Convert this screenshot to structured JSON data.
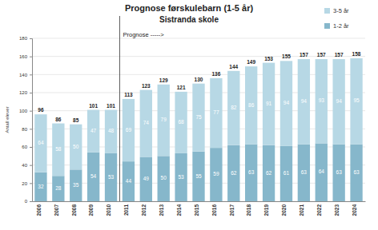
{
  "chart_data": {
    "type": "bar",
    "title": "Prognose førskulebarn (1-5 år)",
    "subtitle": "Sistranda skole",
    "y_label": "Antall elever",
    "categories": [
      "2006",
      "2007",
      "2008",
      "2009",
      "2010",
      "2011",
      "2012",
      "2013",
      "2014",
      "2015",
      "2016",
      "2017",
      "2018",
      "2019",
      "2020",
      "2021",
      "2022",
      "2023",
      "2024"
    ],
    "series": [
      {
        "name": "1-2 år",
        "color": "#86b7cb",
        "values": [
          32,
          28,
          35,
          54,
          53,
          44,
          49,
          50,
          53,
          55,
          59,
          62,
          63,
          62,
          61,
          63,
          64,
          63,
          63
        ]
      },
      {
        "name": "3-5 år",
        "color": "#b7d8e5",
        "values": [
          64,
          58,
          50,
          47,
          48,
          69,
          74,
          79,
          68,
          75,
          77,
          82,
          86,
          91,
          94,
          94,
          93,
          94,
          95
        ]
      }
    ],
    "totals": [
      96,
      86,
      85,
      101,
      101,
      113,
      123,
      129,
      121,
      130,
      136,
      144,
      149,
      153,
      155,
      157,
      157,
      157,
      158
    ],
    "annotations": [
      {
        "text": "Prognose ----->",
        "x": "2011"
      }
    ],
    "ylim": [
      0,
      180
    ],
    "yticks": [
      0,
      20,
      40,
      60,
      80,
      100,
      120,
      140,
      160,
      180
    ],
    "stacked": true,
    "data_labels": true,
    "grid": true,
    "legend": "top-right"
  }
}
